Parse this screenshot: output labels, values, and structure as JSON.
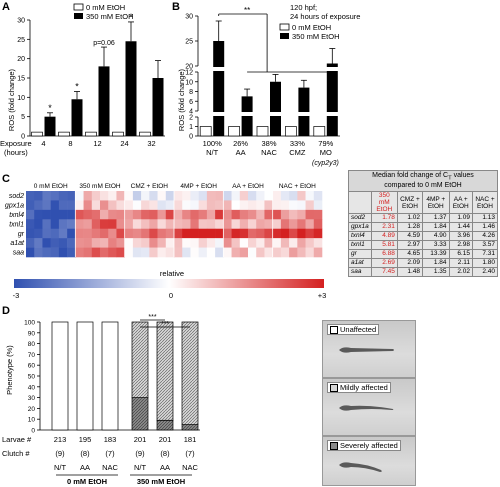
{
  "panel_letters": {
    "a": "A",
    "b": "B",
    "c": "C",
    "d": "D"
  },
  "legend": {
    "ctrl": "0 mM EtOH",
    "etoh": "350 mM EtOH"
  },
  "colors": {
    "control": "#ffffff",
    "etoh": "#000000",
    "heat_low": "#3050b0",
    "heat_mid": "#ffffff",
    "heat_high": "#d42020"
  },
  "chart_data": [
    {
      "type": "bar",
      "panel": "A",
      "ylabel": "ROS (fold change)",
      "xlabel": "Exposure (hours)",
      "categories": [
        "4",
        "8",
        "12",
        "24",
        "32"
      ],
      "ylim": [
        0,
        30
      ],
      "yticks": [
        "0",
        "5",
        "10",
        "15",
        "20",
        "25",
        "30"
      ],
      "series": [
        {
          "name": "0 mM EtOH",
          "values": [
            1,
            1,
            1,
            1,
            1
          ]
        },
        {
          "name": "350 mM EtOH",
          "values": [
            5,
            9.5,
            18,
            24.5,
            15
          ],
          "errors": [
            1,
            2,
            5,
            5,
            4.5
          ]
        }
      ],
      "annotations": [
        "*",
        "*",
        "p=0.06",
        "*",
        ""
      ]
    },
    {
      "type": "bar",
      "panel": "B",
      "ylabel": "ROS (fold change)",
      "categories": [
        "N/T",
        "AA",
        "NAC",
        "CMZ",
        "MO"
      ],
      "category_pct": [
        "100%",
        "26%",
        "38%",
        "33%",
        "79%"
      ],
      "note": "(cyp2y3)",
      "yticks": [
        "0",
        "1",
        "2",
        "4",
        "6",
        "8",
        "10",
        "12",
        "20",
        "25",
        "30"
      ],
      "series": [
        {
          "name": "0 mM EtOH",
          "values": [
            1,
            1,
            1,
            1,
            1
          ]
        },
        {
          "name": "350 mM EtOH",
          "values": [
            25,
            7,
            10,
            8.8,
            20.5
          ],
          "errors": [
            4,
            1.5,
            1.5,
            1.5,
            3
          ]
        }
      ],
      "annotation": "**",
      "subtitle": [
        "120 hpf;",
        "24 hours of exposure"
      ]
    },
    {
      "type": "heatmap",
      "panel": "C",
      "groups": [
        "0 mM EtOH",
        "350 mM EtOH",
        "CMZ + EtOH",
        "4MP + EtOH",
        "AA + EtOH",
        "NAC + EtOH"
      ],
      "genes": [
        "sod2",
        "gpx1a",
        "txnl4",
        "txnl1",
        "gr",
        "a1at",
        "saa"
      ],
      "colorbar_label": "relative",
      "colorbar_ticks": [
        "-3",
        "0",
        "+3"
      ],
      "table": {
        "title": [
          "Median fold change of C",
          "T",
          " values",
          "compared to 0 mM EtOH"
        ],
        "columns": [
          "350 mM EtOH",
          "CMZ + EtOH",
          "4MP + EtOH",
          "AA + EtOH",
          "NAC + EtOH"
        ],
        "rows": [
          [
            "sod2",
            "1.78",
            "1.02",
            "1.37",
            "1.09",
            "1.13"
          ],
          [
            "gpx1a",
            "2.31",
            "1.28",
            "1.84",
            "1.44",
            "1.46"
          ],
          [
            "txnl4",
            "4.89",
            "4.59",
            "4.90",
            "3.96",
            "4.26"
          ],
          [
            "txnl1",
            "5.81",
            "2.97",
            "3.33",
            "2.98",
            "3.57"
          ],
          [
            "gr",
            "6.88",
            "4.65",
            "13.39",
            "6.15",
            "7.31"
          ],
          [
            "a1at",
            "2.69",
            "2.09",
            "1.84",
            "2.11",
            "1.80"
          ],
          [
            "saa",
            "7.45",
            "1.48",
            "1.35",
            "2.02",
            "2.40"
          ]
        ]
      }
    },
    {
      "type": "bar",
      "panel": "D",
      "ylabel": "Phenotype (%)",
      "ylim": [
        0,
        100
      ],
      "yticks": [
        "0",
        "10",
        "20",
        "30",
        "40",
        "50",
        "60",
        "70",
        "80",
        "90",
        "100"
      ],
      "categories": [
        "N/T",
        "AA",
        "NAC",
        "N/T",
        "AA",
        "NAC"
      ],
      "group_labels": [
        "0 mM EtOH",
        "350 mM EtOH"
      ],
      "larvae_label": "Larvae #",
      "clutch_label": "Clutch #",
      "larvae": [
        "213",
        "195",
        "183",
        "201",
        "201",
        "181"
      ],
      "clutch": [
        "(9)",
        "(8)",
        "(7)",
        "(9)",
        "(8)",
        "(7)"
      ],
      "stacked": [
        {
          "name": "Unaffected",
          "values": [
            100,
            100,
            100,
            0,
            0,
            0
          ]
        },
        {
          "name": "Mildly affected",
          "values": [
            0,
            0,
            0,
            70,
            91,
            95
          ]
        },
        {
          "name": "Severely affected",
          "values": [
            0,
            0,
            0,
            30,
            9,
            5
          ]
        }
      ],
      "annotation": "***"
    }
  ]
}
